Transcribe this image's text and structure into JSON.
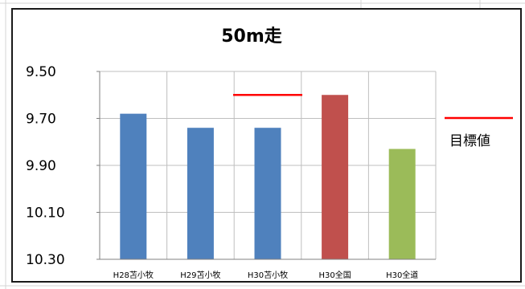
{
  "chart_data": {
    "type": "bar",
    "title": "50m走",
    "xlabel": "",
    "ylabel": "",
    "y_axis_reversed": true,
    "ylim": [
      9.5,
      10.3
    ],
    "yticks": [
      "9.50",
      "9.70",
      "9.90",
      "10.10",
      "10.30"
    ],
    "ytick_values": [
      9.5,
      9.7,
      9.9,
      10.1,
      10.3
    ],
    "categories": [
      "H28苫小牧",
      "H29苫小牧",
      "H30苫小牧",
      "H30全国",
      "H30全道"
    ],
    "values": [
      9.68,
      9.74,
      9.74,
      9.6,
      9.83
    ],
    "bar_colors": [
      "#4f81bd",
      "#4f81bd",
      "#4f81bd",
      "#c0504d",
      "#9bbb59"
    ],
    "target": {
      "name": "目標値",
      "category": "H30苫小牧",
      "value": 9.6,
      "color": "#ff0000"
    },
    "legend": {
      "position": "right",
      "entries": [
        "目標値"
      ]
    },
    "grid": true
  }
}
